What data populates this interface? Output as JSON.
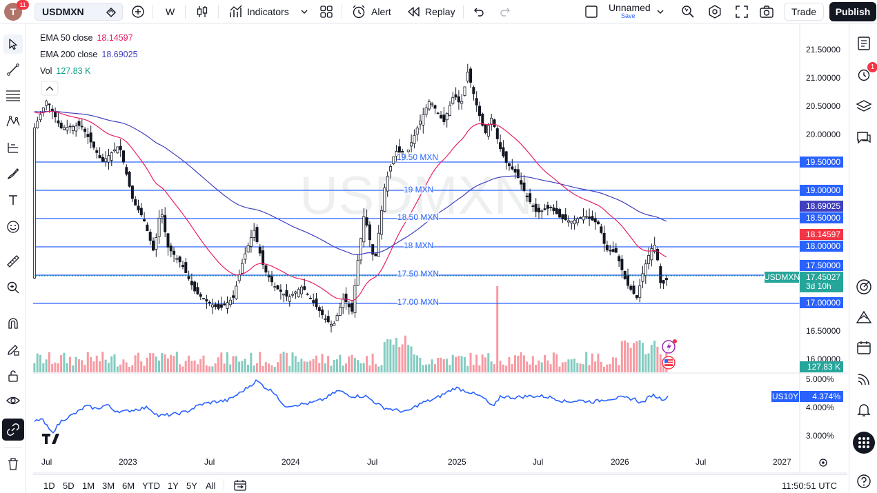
{
  "topbar": {
    "avatar_letter": "T",
    "notification_count": "11",
    "symbol": "USDMXN",
    "interval": "W",
    "indicators_label": "Indicators",
    "alert_label": "Alert",
    "replay_label": "Replay",
    "layout_name": "Unnamed",
    "layout_save": "Save",
    "trade_label": "Trade",
    "publish_label": "Publish"
  },
  "legend": {
    "ema50_label": "EMA 50 close",
    "ema50_value": "18.14597",
    "ema200_label": "EMA 200 close",
    "ema200_value": "18.69025",
    "vol_label": "Vol",
    "vol_value": "127.83 K"
  },
  "watermark": "USDMXN",
  "levels": [
    {
      "label": "19.50 MXN",
      "price": 19.5
    },
    {
      "label": "19 MXN",
      "price": 19.0
    },
    {
      "label": "18.50 MXN",
      "price": 18.5
    },
    {
      "label": "18 MXN",
      "price": 18.0
    },
    {
      "label": "17.50 MXN",
      "price": 17.5
    },
    {
      "label": "17.00 MXN",
      "price": 17.0
    }
  ],
  "price_axis": [
    "21.50000",
    "21.00000",
    "20.50000",
    "20.00000",
    "19.50000",
    "19.00000",
    "18.50000",
    "18.00000",
    "17.50000",
    "17.00000",
    "16.50000",
    "16.00000"
  ],
  "price_labels": {
    "ema200": "18.69025",
    "ema50": "18.14597",
    "l1950": "19.50000",
    "l1900": "19.00000",
    "l1850": "18.50000",
    "l1800": "18.00000",
    "l1750": "17.50000",
    "l1700": "17.00000",
    "current_symbol": "USDMXN",
    "current_price": "17.45027",
    "countdown": "3d 10h",
    "volume": "127.83 K"
  },
  "colors": {
    "ema50": "#e91e63",
    "ema200": "#3f3fbf",
    "levels": "#2962ff",
    "up": "#089981",
    "down": "#f23645",
    "compare": "#2962ff"
  },
  "compare": {
    "symbol": "US10Y",
    "value": "4.374%",
    "axis": [
      "5.000%",
      "4.000%",
      "3.000%"
    ]
  },
  "time_axis": [
    "Jul",
    "2023",
    "Jul",
    "2024",
    "Jul",
    "2025",
    "Jul",
    "2026",
    "Jul",
    "2027"
  ],
  "bottombar": {
    "ranges": [
      "1D",
      "5D",
      "1M",
      "3M",
      "6M",
      "YTD",
      "1Y",
      "5Y",
      "All"
    ],
    "clock": "11:50:51 UTC"
  },
  "right_alert_count": "1"
}
